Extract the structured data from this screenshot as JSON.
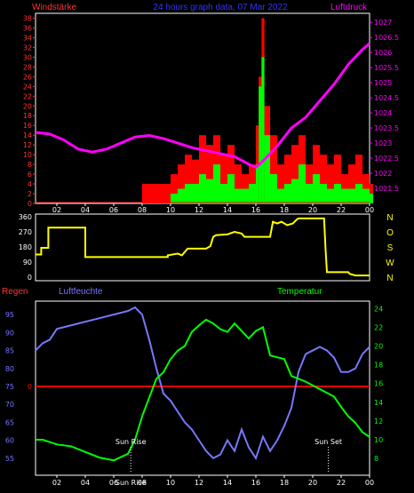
{
  "header": {
    "left_title": "Windstärke",
    "center_title": "24 hours graph data, 07 Mar 2022",
    "right_title": "Luftdruck"
  },
  "time_ticks": [
    "02",
    "04",
    "06",
    "08",
    "10",
    "12",
    "14",
    "16",
    "18",
    "20",
    "22",
    "00"
  ],
  "colors": {
    "wind_axis": "#ff3333",
    "pressure": "#ff00ff",
    "wind_avg": "#00ff00",
    "wind_gust": "#ff0000",
    "wind_dir": "#ffff00",
    "humidity": "#7777ff",
    "temperature": "#00ff00",
    "rain": "#ff0000",
    "frame": "#ffffff"
  },
  "chart_data": [
    {
      "type": "bar",
      "name_left_axis": "Windstärke",
      "name_right_axis": "Luftdruck",
      "x_range_hours": [
        0.5,
        24
      ],
      "y_left_ticks": [
        0,
        2,
        4,
        6,
        8,
        10,
        12,
        14,
        16,
        18,
        20,
        22,
        24,
        26,
        28,
        30,
        32,
        34,
        36,
        38
      ],
      "y_right_ticks": [
        "1027",
        "1026.5",
        "1026",
        "1025.5",
        "1025",
        "1024.5",
        "1024",
        "1023.5",
        "1023",
        "1022.5",
        "1022",
        "1021.5"
      ],
      "y_left_range": [
        0,
        39
      ],
      "y_right_range": [
        1021.0,
        1027.3
      ],
      "pressure_series": {
        "x": [
          0.5,
          1.5,
          2.5,
          3.5,
          4.5,
          5.5,
          6.5,
          7.5,
          8.5,
          9.5,
          10.5,
          11.5,
          12.5,
          13.5,
          14.5,
          15.5,
          16.0,
          16.5,
          17.5,
          18.5,
          19.5,
          20.5,
          21.5,
          22.5,
          23.5,
          24.0
        ],
        "y": [
          1023.35,
          1023.3,
          1023.1,
          1022.8,
          1022.7,
          1022.8,
          1023.0,
          1023.2,
          1023.25,
          1023.15,
          1023.0,
          1022.85,
          1022.75,
          1022.65,
          1022.55,
          1022.3,
          1022.2,
          1022.4,
          1022.9,
          1023.5,
          1023.85,
          1024.4,
          1024.95,
          1025.6,
          1026.1,
          1026.3
        ]
      },
      "gust_series": {
        "x": [
          8,
          9,
          10,
          10.5,
          11,
          11.5,
          12,
          12.5,
          13,
          13.5,
          14,
          14.5,
          15,
          15.5,
          16,
          16.2,
          16.4,
          16.6,
          17,
          17.5,
          18,
          18.5,
          19,
          19.5,
          20,
          20.5,
          21,
          21.5,
          22,
          22.5,
          23,
          23.5,
          24
        ],
        "y": [
          4,
          4,
          6,
          8,
          10,
          9,
          14,
          12,
          14,
          10,
          12,
          8,
          6,
          8,
          16,
          26,
          38,
          20,
          14,
          8,
          10,
          12,
          14,
          8,
          12,
          10,
          8,
          10,
          6,
          8,
          10,
          6,
          4
        ]
      },
      "avg_series": {
        "x": [
          10,
          10.5,
          11,
          11.5,
          12,
          12.5,
          13,
          13.5,
          14,
          14.5,
          15,
          15.5,
          16,
          16.2,
          16.4,
          16.6,
          17,
          17.5,
          18,
          18.5,
          19,
          19.5,
          20,
          20.5,
          21,
          21.5,
          22,
          22.5,
          23,
          23.5,
          24
        ],
        "y": [
          2,
          3,
          4,
          4,
          6,
          5,
          8,
          4,
          6,
          3,
          3,
          4,
          8,
          24,
          30,
          14,
          6,
          3,
          4,
          5,
          8,
          4,
          6,
          4,
          3,
          4,
          3,
          3,
          4,
          3,
          2
        ]
      }
    },
    {
      "type": "line",
      "name": "wind direction",
      "y_left_ticks": [
        0,
        90,
        180,
        270,
        360
      ],
      "y_right_ticks": [
        "N",
        "W",
        "S",
        "O",
        "N"
      ],
      "y_range": [
        0,
        360
      ],
      "x": [
        0.5,
        0.9,
        0.9,
        1.4,
        1.4,
        4.0,
        4.0,
        9.8,
        9.8,
        10.5,
        10.8,
        11.2,
        12.0,
        12.5,
        12.8,
        13.0,
        13.2,
        14.0,
        14.5,
        15.0,
        15.2,
        17.0,
        17.2,
        17.5,
        17.8,
        18.2,
        18.6,
        18.9,
        19.0,
        20.8,
        20.9,
        21.0,
        22.5,
        22.6,
        23.0,
        23.5,
        24.0
      ],
      "y": [
        135,
        135,
        175,
        175,
        295,
        295,
        120,
        120,
        130,
        140,
        130,
        170,
        170,
        170,
        185,
        240,
        250,
        255,
        270,
        260,
        240,
        240,
        330,
        320,
        330,
        310,
        320,
        345,
        350,
        350,
        170,
        30,
        30,
        20,
        10,
        10,
        10
      ]
    },
    {
      "type": "line",
      "name_left_axis": "Regen",
      "name_mid_label": "Luftfeuchte",
      "name_right_axis": "Temperatur",
      "humidity_ticks": [
        "95",
        "90",
        "85",
        "80",
        "75",
        "70",
        "65",
        "60",
        "55"
      ],
      "humidity_range": [
        51,
        98
      ],
      "temperature_ticks": [
        "24",
        "22",
        "20",
        "18",
        "16",
        "14",
        "12",
        "10",
        "8"
      ],
      "temperature_range": [
        6.5,
        24.5
      ],
      "rain_value_label": "0",
      "humidity": {
        "x": [
          0.5,
          1.0,
          1.5,
          2.0,
          3.0,
          4.0,
          5.0,
          6.0,
          7.0,
          7.5,
          8.0,
          8.5,
          9.0,
          9.5,
          10.0,
          10.5,
          11.0,
          11.5,
          12.0,
          12.5,
          13.0,
          13.5,
          14.0,
          14.5,
          15.0,
          15.5,
          16.0,
          16.5,
          17.0,
          17.5,
          18.0,
          18.5,
          19.0,
          19.5,
          20.0,
          20.5,
          21.0,
          21.5,
          22.0,
          22.5,
          23.0,
          23.5,
          24.0
        ],
        "y": [
          85,
          87,
          88,
          91,
          92,
          93,
          94,
          95,
          96,
          97,
          95,
          88,
          80,
          73,
          71,
          68,
          65,
          63,
          60,
          57,
          55,
          56,
          60,
          57,
          63,
          58,
          55,
          61,
          57,
          60,
          64,
          69,
          79,
          84,
          85,
          86,
          85,
          83,
          79,
          79,
          80,
          84,
          86
        ]
      },
      "temperature": {
        "x": [
          0.5,
          1.0,
          2.0,
          3.0,
          4.0,
          5.0,
          6.0,
          7.0,
          7.5,
          8.0,
          8.5,
          9.0,
          9.5,
          10.0,
          10.5,
          11.0,
          11.5,
          12.0,
          12.5,
          13.0,
          13.5,
          14.0,
          14.5,
          15.0,
          15.5,
          16.0,
          16.5,
          17.0,
          17.5,
          18.0,
          18.5,
          19.0,
          19.5,
          20.0,
          20.5,
          21.0,
          21.5,
          22.0,
          22.5,
          23.0,
          23.5,
          24.0
        ],
        "y": [
          10,
          10,
          9.5,
          9.3,
          8.7,
          8.1,
          7.8,
          8.5,
          10,
          12.5,
          14.5,
          16.5,
          17.2,
          18.6,
          19.5,
          20,
          21.5,
          22.2,
          22.8,
          22.4,
          21.8,
          21.5,
          22.4,
          21.6,
          20.8,
          21.6,
          22.0,
          19,
          18.8,
          18.6,
          16.8,
          16.5,
          16.2,
          15.8,
          15.4,
          15.0,
          14.6,
          13.5,
          12.5,
          11.8,
          10.8,
          10.3
        ]
      },
      "rain_line_value": 0,
      "annotations": [
        {
          "label": "Sun Rise",
          "x": 7.2
        },
        {
          "label": "Sun Set",
          "x": 21.1
        }
      ],
      "bottom_label": "Sun Rise"
    }
  ],
  "panel3_labels": {
    "left": "Regen",
    "mid": "Luftfeuchte",
    "right": "Temperatur"
  }
}
